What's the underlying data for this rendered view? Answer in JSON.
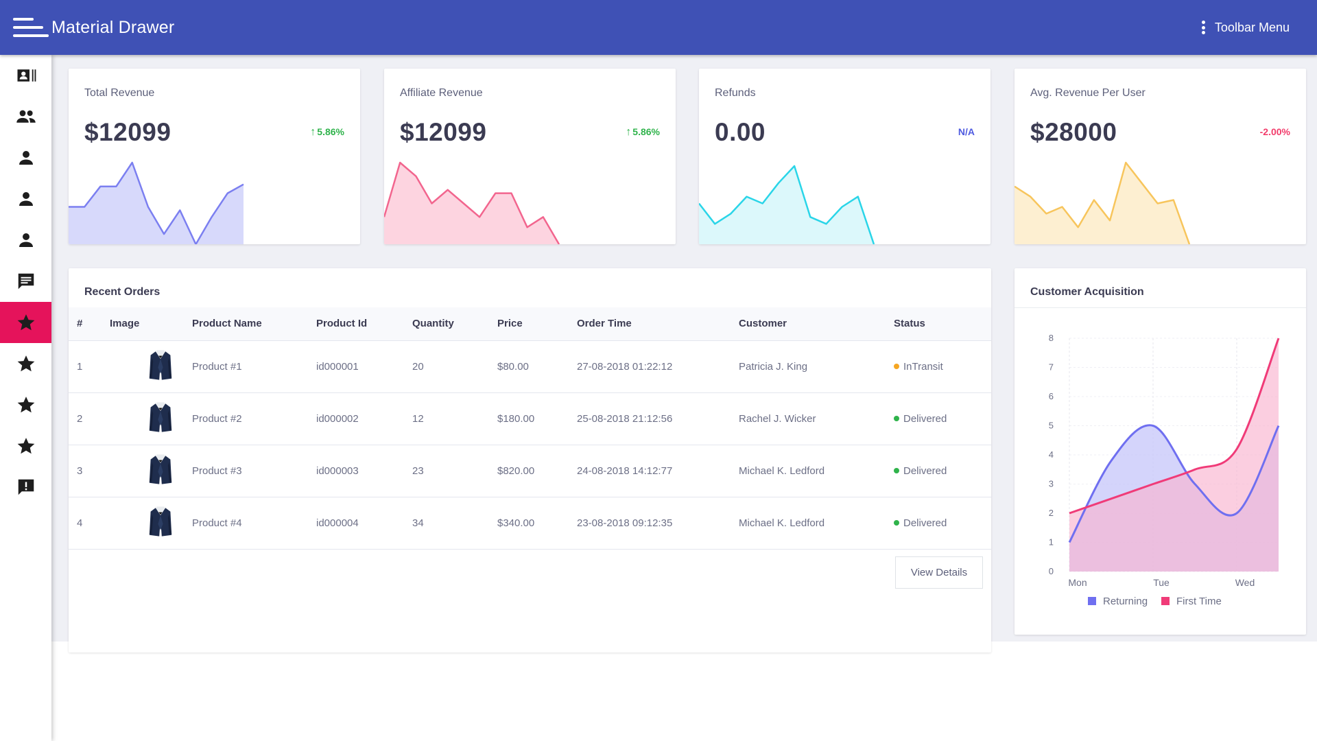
{
  "app": {
    "title": "Material Drawer",
    "toolbar_menu": "Toolbar Menu"
  },
  "sidebar": {
    "items": [
      {
        "icon": "contacts-card-icon",
        "active": false
      },
      {
        "icon": "people-icon",
        "active": false
      },
      {
        "icon": "person-icon",
        "active": false
      },
      {
        "icon": "person-icon",
        "active": false
      },
      {
        "icon": "person-icon",
        "active": false
      },
      {
        "icon": "message-icon",
        "active": false
      },
      {
        "icon": "star-icon",
        "active": true
      },
      {
        "icon": "star-icon",
        "active": false
      },
      {
        "icon": "star-icon",
        "active": false
      },
      {
        "icon": "star-icon",
        "active": false
      },
      {
        "icon": "feedback-icon",
        "active": false
      }
    ],
    "active_color": "#e5135b"
  },
  "stats": [
    {
      "title": "Total Revenue",
      "value": "$12099",
      "change": "5.86%",
      "trend": "up",
      "change_color": "#2fb34b",
      "line_color": "#7b7ff0",
      "fill_color": "#d7d9fb",
      "spark": [
        5.5,
        5.5,
        8.5,
        8.5,
        12,
        5.5,
        1.5,
        5,
        0,
        4,
        7.5,
        8.8
      ]
    },
    {
      "title": "Affiliate Revenue",
      "value": "$12099",
      "change": "5.86%",
      "trend": "up",
      "change_color": "#2fb34b",
      "line_color": "#f2658e",
      "fill_color": "#fdd4e0",
      "spark": [
        4,
        12,
        10,
        6,
        8,
        6,
        4,
        7.5,
        7.5,
        2.5,
        4,
        0
      ]
    },
    {
      "title": "Refunds",
      "value": "0.00",
      "change": "N/A",
      "trend": "none",
      "change_color": "#4f5be0",
      "line_color": "#2ad5e8",
      "fill_color": "#dcf8fb",
      "spark": [
        6,
        3,
        4.5,
        7,
        6,
        9,
        11.5,
        4,
        3,
        5.5,
        7,
        0
      ]
    },
    {
      "title": "Avg. Revenue Per User",
      "value": "$28000",
      "change": "-2.00%",
      "trend": "down",
      "change_color": "#f23c6b",
      "line_color": "#f7c55c",
      "fill_color": "#fdefd1",
      "spark": [
        8.5,
        7,
        4.5,
        5.5,
        2.5,
        6.5,
        3.5,
        12,
        9,
        6,
        6.5,
        0
      ]
    }
  ],
  "orders": {
    "title": "Recent Orders",
    "columns": [
      "#",
      "Image",
      "Product Name",
      "Product Id",
      "Quantity",
      "Price",
      "Order Time",
      "Customer",
      "Status"
    ],
    "rows": [
      {
        "num": "1",
        "product": "Product #1",
        "id": "id000001",
        "qty": "20",
        "price": "$80.00",
        "time": "27-08-2018 01:22:12",
        "customer": "Patricia J. King",
        "status": "InTransit",
        "status_color": "#f5a623"
      },
      {
        "num": "2",
        "product": "Product #2",
        "id": "id000002",
        "qty": "12",
        "price": "$180.00",
        "time": "25-08-2018 21:12:56",
        "customer": "Rachel J. Wicker",
        "status": "Delivered",
        "status_color": "#2fb34b"
      },
      {
        "num": "3",
        "product": "Product #3",
        "id": "id000003",
        "qty": "23",
        "price": "$820.00",
        "time": "24-08-2018 14:12:77",
        "customer": "Michael K. Ledford",
        "status": "Delivered",
        "status_color": "#2fb34b"
      },
      {
        "num": "4",
        "product": "Product #4",
        "id": "id000004",
        "qty": "34",
        "price": "$340.00",
        "time": "23-08-2018 09:12:35",
        "customer": "Michael K. Ledford",
        "status": "Delivered",
        "status_color": "#2fb34b"
      }
    ],
    "view_button": "View Details"
  },
  "acquisition": {
    "title": "Customer Acquisition"
  },
  "chart_data": {
    "type": "area",
    "categories": [
      "Mon",
      "Tue",
      "Wed"
    ],
    "x": [
      0,
      0.5,
      1,
      1.5,
      2,
      2.5
    ],
    "series": [
      {
        "name": "Returning",
        "color": "#6f6ff0",
        "fill": "#c5c6f9",
        "values": [
          1,
          3.8,
          5,
          3,
          2,
          5
        ]
      },
      {
        "name": "First Time",
        "color": "#f03b78",
        "fill": "#f9b3cf",
        "values": [
          2,
          2.5,
          3,
          3.5,
          4.2,
          8
        ]
      }
    ],
    "ylim": [
      0,
      8
    ],
    "yticks": [
      0,
      1,
      2,
      3,
      4,
      5,
      6,
      7,
      8
    ],
    "legend": "bottom"
  }
}
